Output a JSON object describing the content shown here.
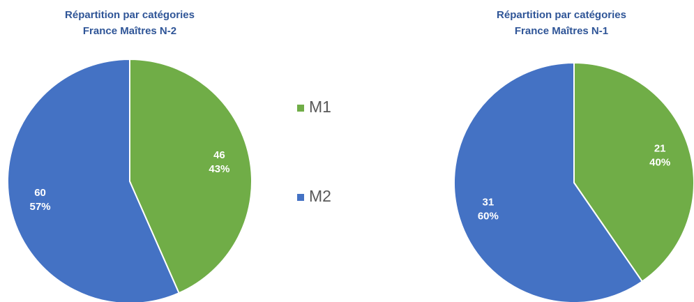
{
  "chart_data": [
    {
      "type": "pie",
      "title": "Répartition par catégories",
      "subtitle": "France Maîtres N-2",
      "categories": [
        "M1",
        "M2"
      ],
      "values": [
        46,
        60
      ],
      "percent_labels": [
        "43%",
        "57%"
      ],
      "colors": [
        "#70ad47",
        "#4472c4"
      ],
      "legend": "center"
    },
    {
      "type": "pie",
      "title": "Répartition par catégories",
      "subtitle": "France Maîtres N-1",
      "categories": [
        "M1",
        "M2"
      ],
      "values": [
        21,
        31
      ],
      "percent_labels": [
        "40%",
        "60%"
      ],
      "colors": [
        "#70ad47",
        "#4472c4"
      ]
    }
  ]
}
